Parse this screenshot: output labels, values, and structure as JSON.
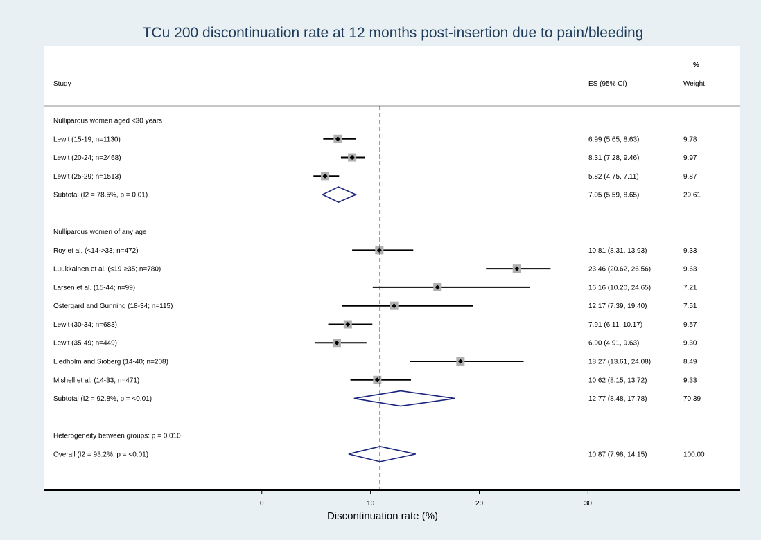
{
  "chart_data": {
    "type": "forest",
    "title": "TCu 200 discontinuation rate at 12 months post-insertion due to pain/bleeding",
    "xlabel": "Discontinuation rate (%)",
    "xlim": [
      -20,
      44
    ],
    "xticks": [
      0,
      10,
      20,
      30
    ],
    "reference_line": 10.87,
    "headers": {
      "study": "Study",
      "es": "ES (95% CI)",
      "weight_top": "%",
      "weight": "Weight"
    },
    "rows": [
      {
        "kind": "group",
        "label": "Nulliparous women aged <30 years"
      },
      {
        "kind": "study",
        "label": "Lewit (15-19; n=1130)",
        "es": 6.99,
        "lo": 5.65,
        "hi": 8.63,
        "es_text": "6.99 (5.65, 8.63)",
        "weight": "9.78"
      },
      {
        "kind": "study",
        "label": "Lewit (20-24; n=2468)",
        "es": 8.31,
        "lo": 7.28,
        "hi": 9.46,
        "es_text": "8.31 (7.28, 9.46)",
        "weight": "9.97"
      },
      {
        "kind": "study",
        "label": "Lewit (25-29; n=1513)",
        "es": 5.82,
        "lo": 4.75,
        "hi": 7.11,
        "es_text": "5.82 (4.75, 7.11)",
        "weight": "9.87"
      },
      {
        "kind": "subtotal",
        "label": "Subtotal  (I2 = 78.5%, p = 0.01)",
        "es": 7.05,
        "lo": 5.59,
        "hi": 8.65,
        "es_text": "7.05 (5.59, 8.65)",
        "weight": "29.61"
      },
      {
        "kind": "blank"
      },
      {
        "kind": "group",
        "label": "Nulliparous women of any age"
      },
      {
        "kind": "study",
        "label": "Roy et al. (<14->33; n=472)",
        "es": 10.81,
        "lo": 8.31,
        "hi": 13.93,
        "es_text": "10.81 (8.31, 13.93)",
        "weight": "9.33"
      },
      {
        "kind": "study",
        "label": "Luukkainen et al. (≤19-≥35; n=780)",
        "es": 23.46,
        "lo": 20.62,
        "hi": 26.56,
        "es_text": "23.46 (20.62, 26.56)",
        "weight": "9.63"
      },
      {
        "kind": "study",
        "label": "Larsen et al. (15-44; n=99)",
        "es": 16.16,
        "lo": 10.2,
        "hi": 24.65,
        "es_text": "16.16 (10.20, 24.65)",
        "weight": "7.21"
      },
      {
        "kind": "study",
        "label": "Ostergard and Gunning (18-34; n=115)",
        "es": 12.17,
        "lo": 7.39,
        "hi": 19.4,
        "es_text": "12.17 (7.39, 19.40)",
        "weight": "7.51"
      },
      {
        "kind": "study",
        "label": "Lewit (30-34; n=683)",
        "es": 7.91,
        "lo": 6.11,
        "hi": 10.17,
        "es_text": "7.91 (6.11, 10.17)",
        "weight": "9.57"
      },
      {
        "kind": "study",
        "label": "Lewit (35-49; n=449)",
        "es": 6.9,
        "lo": 4.91,
        "hi": 9.63,
        "es_text": "6.90 (4.91, 9.63)",
        "weight": "9.30"
      },
      {
        "kind": "study",
        "label": "Liedholm and Sioberg (14-40; n=208)",
        "es": 18.27,
        "lo": 13.61,
        "hi": 24.08,
        "es_text": "18.27 (13.61, 24.08)",
        "weight": "8.49"
      },
      {
        "kind": "study",
        "label": "Mishell et al. (14-33; n=471)",
        "es": 10.62,
        "lo": 8.15,
        "hi": 13.72,
        "es_text": "10.62 (8.15, 13.72)",
        "weight": "9.33"
      },
      {
        "kind": "subtotal",
        "label": "Subtotal  (I2 = 92.8%, p = <0.01)",
        "es": 12.77,
        "lo": 8.48,
        "hi": 17.78,
        "es_text": "12.77 (8.48, 17.78)",
        "weight": "70.39"
      },
      {
        "kind": "blank"
      },
      {
        "kind": "group",
        "label": "Heterogeneity between groups: p = 0.010"
      },
      {
        "kind": "subtotal",
        "label": "Overall  (I2 = 93.2%, p = <0.01)",
        "es": 10.87,
        "lo": 7.98,
        "hi": 14.15,
        "es_text": "10.87 (7.98, 14.15)",
        "weight": "100.00"
      }
    ],
    "colors": {
      "outer_background": "#e8f0f3",
      "plot_background": "#ffffff",
      "title": "#1f3c5a",
      "ci_line": "#000000",
      "box": "#b0b0b0",
      "diamond": "#1a237e",
      "reference_line": "#8b1a1a",
      "separator": "#b4b4b4"
    }
  }
}
